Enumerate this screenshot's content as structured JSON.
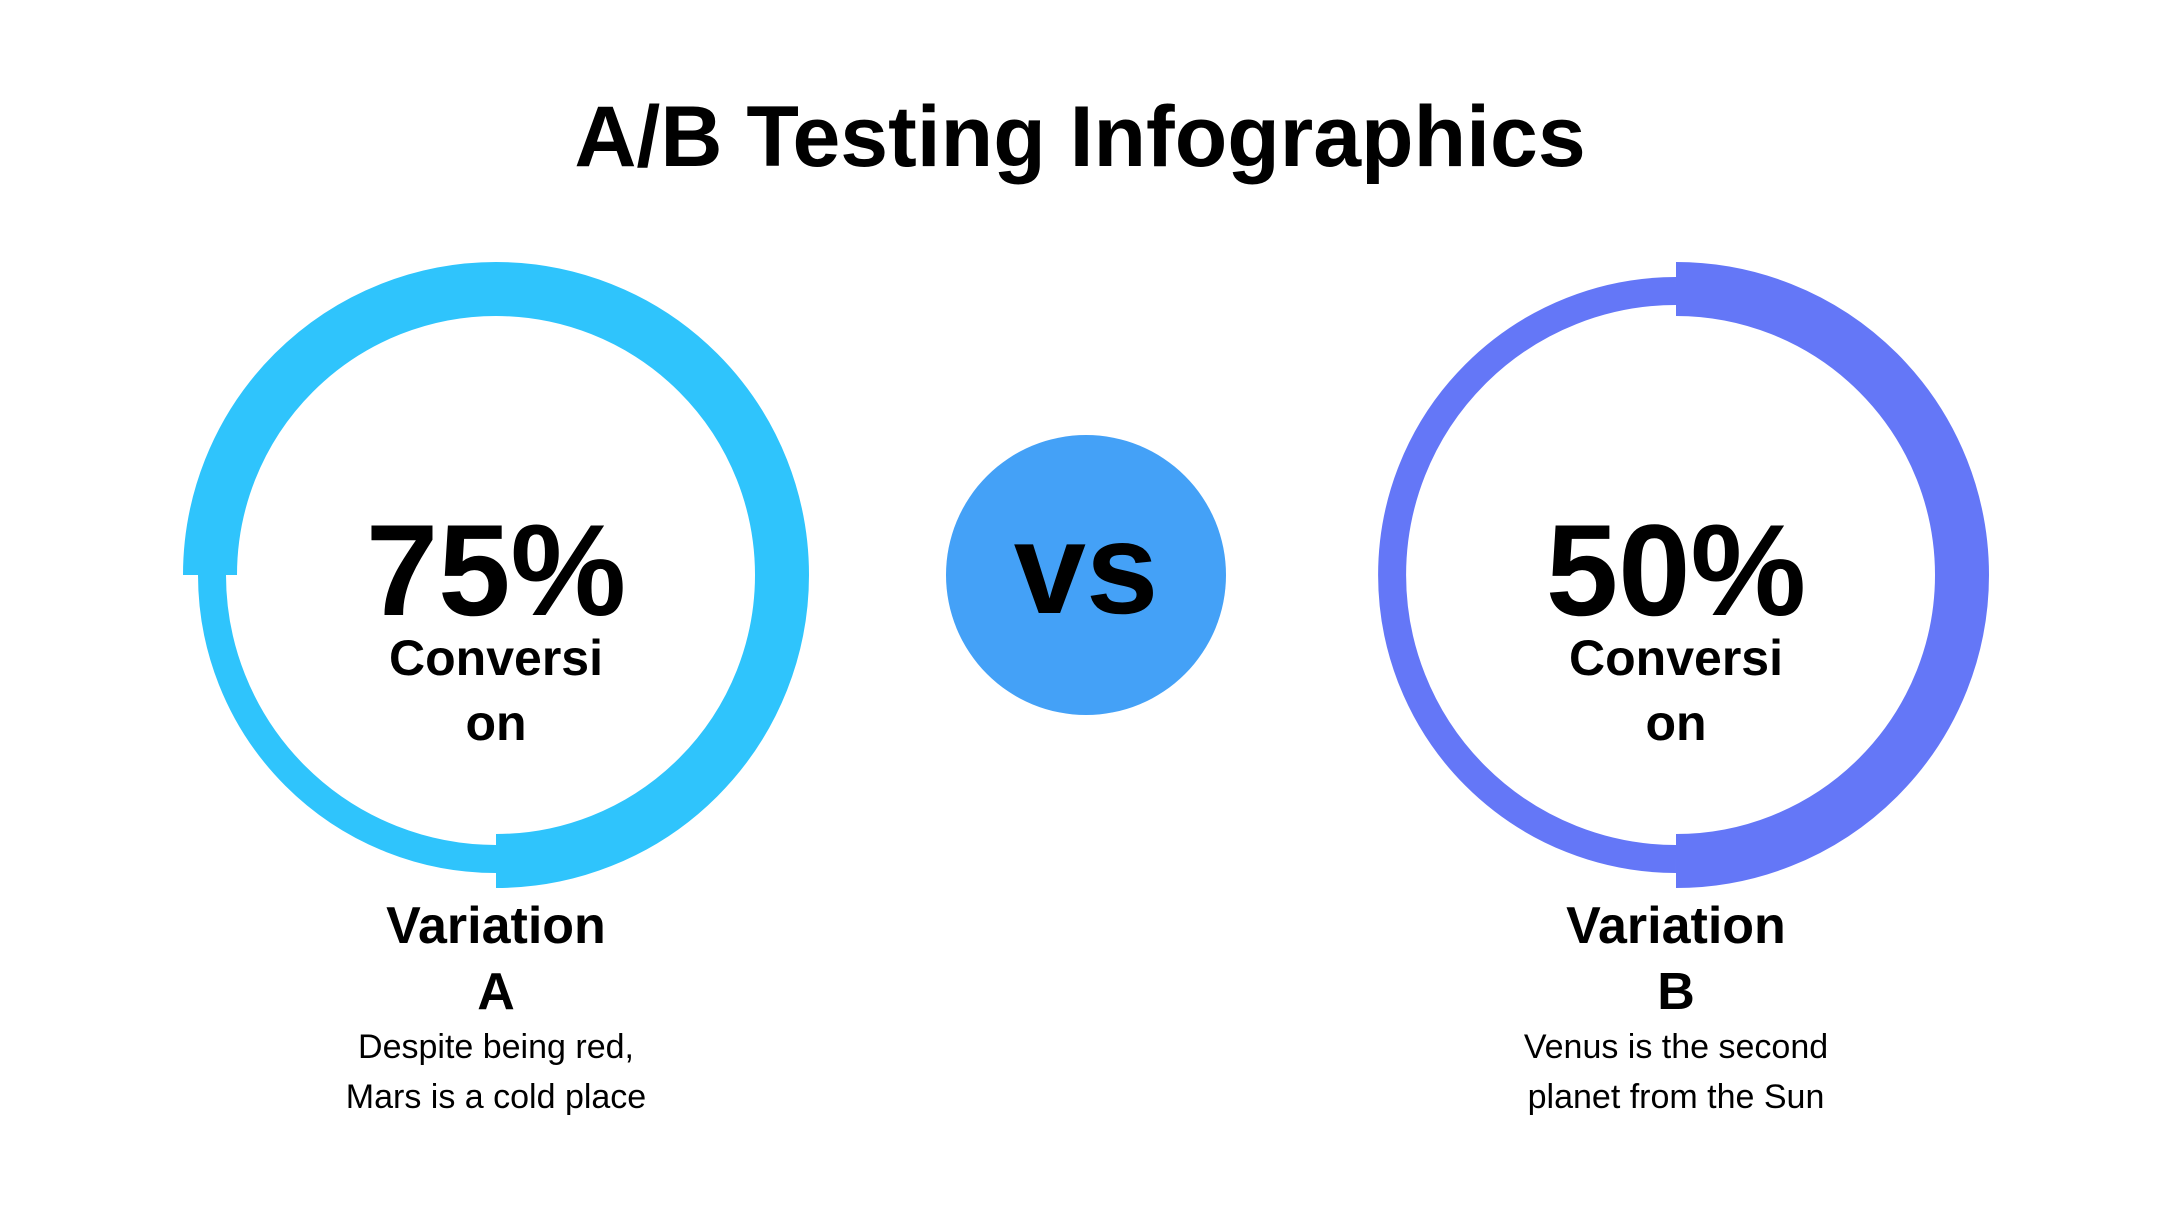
{
  "title": "A/B Testing Infographics",
  "vs": "vs",
  "variations": [
    {
      "value": 75,
      "value_label": "75%",
      "metric": "Conversion",
      "name": "Variation A",
      "description": "Despite being red, Mars is a cold place",
      "color": "#2fc4fc"
    },
    {
      "value": 50,
      "value_label": "50%",
      "metric": "Conversion",
      "name": "Variation B",
      "description": "Venus is the second planet from the Sun",
      "color": "#6477f7"
    }
  ],
  "vs_color": "#44a1f7"
}
